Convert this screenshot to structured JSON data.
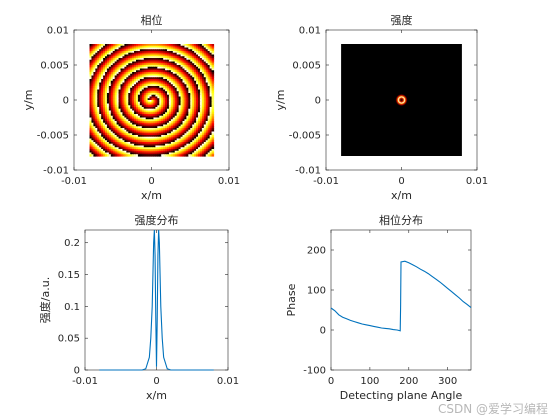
{
  "watermark": "CSDN @爱学习编程",
  "chart_data": [
    {
      "type": "heatmap",
      "title": "相位",
      "xlabel": "x/m",
      "ylabel": "y/m",
      "xlim": [
        -0.01,
        0.01
      ],
      "ylim": [
        -0.01,
        0.01
      ],
      "xticks": [
        -0.01,
        0,
        0.01
      ],
      "yticks": [
        -0.01,
        -0.005,
        0,
        0.005,
        0.01
      ],
      "xtick_labels": [
        "-0.01",
        "0",
        "0.01"
      ],
      "ytick_labels": [
        "-0.01",
        "-0.005",
        "0",
        "0.005",
        "0.01"
      ],
      "extent": [
        -0.008,
        0.008
      ],
      "colormap": "hot",
      "pattern": "spiral phase",
      "ring_count": 6
    },
    {
      "type": "heatmap",
      "title": "强度",
      "xlabel": "x/m",
      "ylabel": "y/m",
      "xlim": [
        -0.01,
        0.01
      ],
      "ylim": [
        -0.01,
        0.01
      ],
      "xticks": [
        -0.01,
        0,
        0.01
      ],
      "yticks": [
        -0.01,
        -0.005,
        0,
        0.005,
        0.01
      ],
      "xtick_labels": [
        "-0.01",
        "0",
        "0.01"
      ],
      "ytick_labels": [
        "-0.01",
        "-0.005",
        "0",
        "0.005",
        "0.01"
      ],
      "extent": [
        -0.008,
        0.008
      ],
      "colormap": "hot",
      "ring_radius": 0.0004
    },
    {
      "type": "line",
      "title": "强度分布",
      "xlabel": "x/m",
      "ylabel": "强度/a.u.",
      "xlim": [
        -0.01,
        0.01
      ],
      "ylim": [
        0,
        0.22
      ],
      "xticks": [
        -0.01,
        0,
        0.01
      ],
      "yticks": [
        0,
        0.05,
        0.1,
        0.15,
        0.2
      ],
      "xtick_labels": [
        "-0.01",
        "0",
        "0.01"
      ],
      "ytick_labels": [
        "0",
        "0.05",
        "0.1",
        "0.15",
        "0.2"
      ],
      "color": "#0072BD",
      "x": [
        -0.008,
        -0.002,
        -0.0015,
        -0.001,
        -0.0008,
        -0.0006,
        -0.0005,
        -0.0004,
        -0.0003,
        -0.0002,
        -0.0001,
        0,
        0.0001,
        0.0002,
        0.0003,
        0.0004,
        0.0005,
        0.0006,
        0.0008,
        0.001,
        0.0015,
        0.002,
        0.008
      ],
      "y": [
        0,
        0,
        0.002,
        0.02,
        0.05,
        0.1,
        0.15,
        0.2,
        0.22,
        0.18,
        0.08,
        0.005,
        0.08,
        0.18,
        0.22,
        0.2,
        0.15,
        0.1,
        0.05,
        0.02,
        0.002,
        0,
        0
      ]
    },
    {
      "type": "line",
      "title": "相位分布",
      "xlabel": "Detecting plane Angle",
      "ylabel": "Phase",
      "xlim": [
        0,
        360
      ],
      "ylim": [
        -100,
        250
      ],
      "xticks": [
        0,
        100,
        200,
        300
      ],
      "yticks": [
        -100,
        0,
        100,
        200
      ],
      "xtick_labels": [
        "0",
        "100",
        "200",
        "300"
      ],
      "ytick_labels": [
        "-100",
        "0",
        "100",
        "200"
      ],
      "color": "#0072BD",
      "x": [
        0,
        10,
        20,
        30,
        40,
        50,
        60,
        70,
        80,
        90,
        100,
        110,
        120,
        130,
        140,
        150,
        160,
        170,
        178,
        179,
        180,
        190,
        200,
        210,
        220,
        230,
        240,
        250,
        260,
        270,
        280,
        290,
        300,
        310,
        320,
        330,
        340,
        350,
        360
      ],
      "y": [
        55,
        48,
        38,
        32,
        28,
        24,
        21,
        18,
        15,
        13,
        11,
        9,
        7,
        5,
        4,
        3,
        1,
        0,
        -2,
        60,
        170,
        172,
        168,
        163,
        158,
        152,
        147,
        141,
        134,
        127,
        120,
        112,
        104,
        96,
        88,
        80,
        71,
        64,
        56
      ]
    }
  ]
}
